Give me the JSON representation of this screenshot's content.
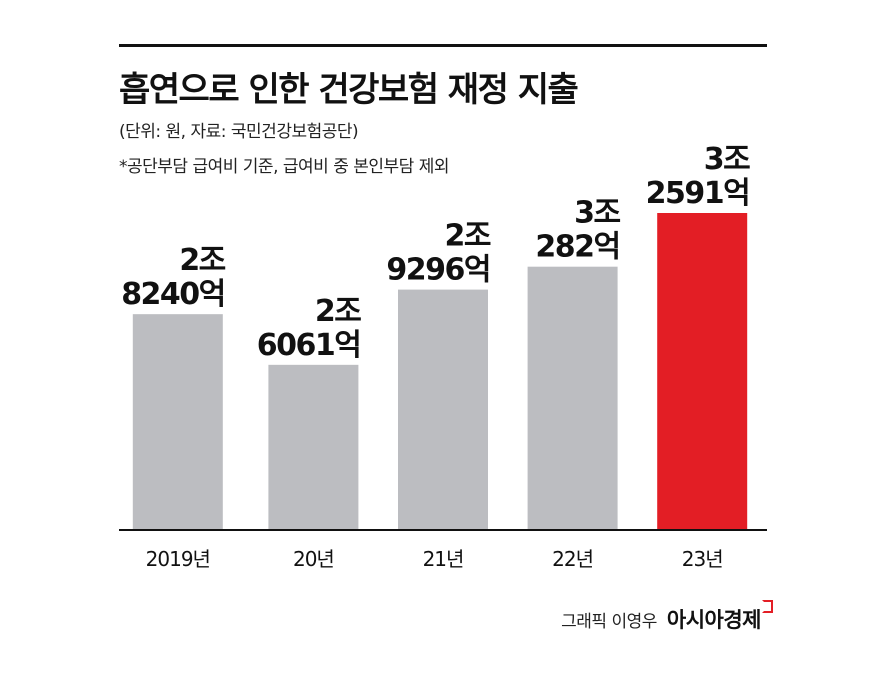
{
  "header": {
    "title": "흡연으로 인한 건강보험 재정 지출",
    "unit_note": "(단위: 원, 자료: 국민건강보험공단)",
    "basis_note": "*공단부담 급여비 기준, 급여비 중 본인부담 제외"
  },
  "footer": {
    "graphic_credit": "그래픽 이영우",
    "brand": "아시아경제"
  },
  "colors": {
    "bar_default": "#bcbdc1",
    "bar_highlight": "#e31e25",
    "text": "#111111"
  },
  "chart_data": {
    "type": "bar",
    "title": "흡연으로 인한 건강보험 재정 지출",
    "categories": [
      "2019년",
      "20년",
      "21년",
      "22년",
      "23년"
    ],
    "values": [
      28240,
      26061,
      29296,
      30282,
      32591
    ],
    "value_unit": "억원",
    "labels": [
      [
        "2조",
        "8240억"
      ],
      [
        "2조",
        "6061억"
      ],
      [
        "2조",
        "9296억"
      ],
      [
        "3조",
        "282억"
      ],
      [
        "3조",
        "2591억"
      ]
    ],
    "highlight_index": 4,
    "ylim": [
      19000,
      34000
    ],
    "grid": false,
    "legend": "none"
  }
}
